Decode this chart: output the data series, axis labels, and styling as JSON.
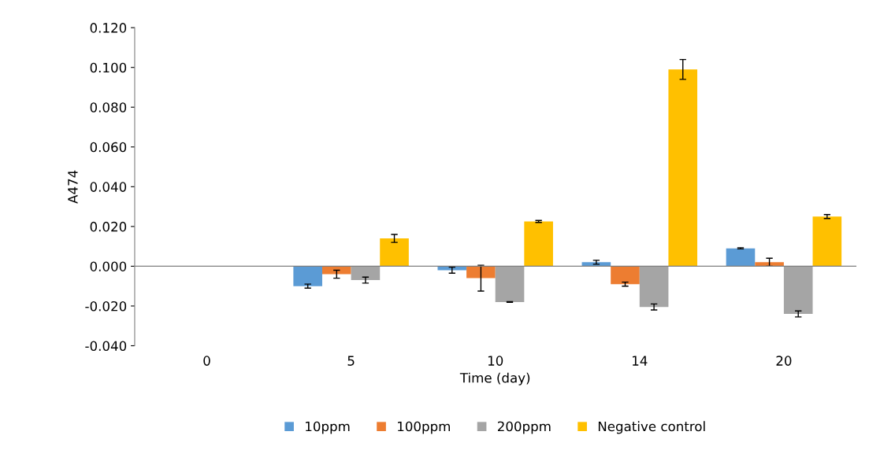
{
  "chart_data": {
    "type": "bar",
    "xlabel": "Time (day)",
    "ylabel": "A474",
    "categories": [
      "0",
      "5",
      "10",
      "14",
      "20"
    ],
    "series": [
      {
        "name": "10ppm",
        "color": "#5b9bd5",
        "values": [
          0,
          -0.01,
          -0.002,
          0.002,
          0.009
        ],
        "errors": [
          null,
          0.001,
          0.0015,
          0.001,
          0.0003
        ]
      },
      {
        "name": "100ppm",
        "color": "#ed7d31",
        "values": [
          0,
          -0.004,
          -0.006,
          -0.009,
          0.002
        ],
        "errors": [
          null,
          0.002,
          0.0065,
          0.001,
          0.002
        ]
      },
      {
        "name": "200ppm",
        "color": "#a5a5a5",
        "values": [
          0,
          -0.007,
          -0.018,
          -0.0205,
          -0.024
        ],
        "errors": [
          null,
          0.0015,
          0.0002,
          0.0015,
          0.0015
        ]
      },
      {
        "name": "Negative control",
        "color": "#ffc000",
        "values": [
          0,
          0.014,
          0.0225,
          0.099,
          0.025
        ],
        "errors": [
          null,
          0.002,
          0.0005,
          0.005,
          0.001
        ]
      }
    ],
    "ylim": [
      -0.04,
      0.12
    ],
    "yticks": [
      {
        "value": -0.04,
        "label": "-0.040"
      },
      {
        "value": -0.02,
        "label": "-0.020"
      },
      {
        "value": 0,
        "label": "0.000"
      },
      {
        "value": 0.02,
        "label": "0.020"
      },
      {
        "value": 0.04,
        "label": "0.040"
      },
      {
        "value": 0.06,
        "label": "0.060"
      },
      {
        "value": 0.08,
        "label": "0.080"
      },
      {
        "value": 0.1,
        "label": "0.100"
      },
      {
        "value": 0.12,
        "label": "0.120"
      }
    ],
    "legend": "bottom"
  }
}
